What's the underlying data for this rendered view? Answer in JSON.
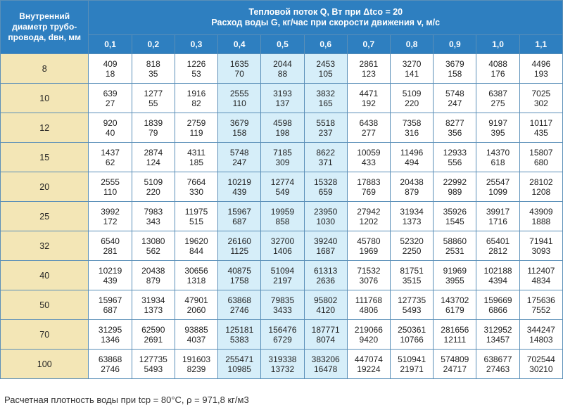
{
  "header": {
    "corner_text": "Внутренний диаметр трубо-провода, dвн, мм",
    "title_line1": "Тепловой поток Q, Вт при Δtco = 20",
    "title_line2": "Расход воды G, кг/час при скорости движения v, м/с"
  },
  "velocities": [
    "0,1",
    "0,2",
    "0,3",
    "0,4",
    "0,5",
    "0,6",
    "0,7",
    "0,8",
    "0,9",
    "1,0",
    "1,1"
  ],
  "rows": [
    {
      "d": "8",
      "cells": [
        [
          "409",
          "18"
        ],
        [
          "818",
          "35"
        ],
        [
          "1226",
          "53"
        ],
        [
          "1635",
          "70"
        ],
        [
          "2044",
          "88"
        ],
        [
          "2453",
          "105"
        ],
        [
          "2861",
          "123"
        ],
        [
          "3270",
          "141"
        ],
        [
          "3679",
          "158"
        ],
        [
          "4088",
          "176"
        ],
        [
          "4496",
          "193"
        ]
      ]
    },
    {
      "d": "10",
      "cells": [
        [
          "639",
          "27"
        ],
        [
          "1277",
          "55"
        ],
        [
          "1916",
          "82"
        ],
        [
          "2555",
          "110"
        ],
        [
          "3193",
          "137"
        ],
        [
          "3832",
          "165"
        ],
        [
          "4471",
          "192"
        ],
        [
          "5109",
          "220"
        ],
        [
          "5748",
          "247"
        ],
        [
          "6387",
          "275"
        ],
        [
          "7025",
          "302"
        ]
      ]
    },
    {
      "d": "12",
      "cells": [
        [
          "920",
          "40"
        ],
        [
          "1839",
          "79"
        ],
        [
          "2759",
          "119"
        ],
        [
          "3679",
          "158"
        ],
        [
          "4598",
          "198"
        ],
        [
          "5518",
          "237"
        ],
        [
          "6438",
          "277"
        ],
        [
          "7358",
          "316"
        ],
        [
          "8277",
          "356"
        ],
        [
          "9197",
          "395"
        ],
        [
          "10117",
          "435"
        ]
      ]
    },
    {
      "d": "15",
      "cells": [
        [
          "1437",
          "62"
        ],
        [
          "2874",
          "124"
        ],
        [
          "4311",
          "185"
        ],
        [
          "5748",
          "247"
        ],
        [
          "7185",
          "309"
        ],
        [
          "8622",
          "371"
        ],
        [
          "10059",
          "433"
        ],
        [
          "11496",
          "494"
        ],
        [
          "12933",
          "556"
        ],
        [
          "14370",
          "618"
        ],
        [
          "15807",
          "680"
        ]
      ]
    },
    {
      "d": "20",
      "cells": [
        [
          "2555",
          "110"
        ],
        [
          "5109",
          "220"
        ],
        [
          "7664",
          "330"
        ],
        [
          "10219",
          "439"
        ],
        [
          "12774",
          "549"
        ],
        [
          "15328",
          "659"
        ],
        [
          "17883",
          "769"
        ],
        [
          "20438",
          "879"
        ],
        [
          "22992",
          "989"
        ],
        [
          "25547",
          "1099"
        ],
        [
          "28102",
          "1208"
        ]
      ]
    },
    {
      "d": "25",
      "cells": [
        [
          "3992",
          "172"
        ],
        [
          "7983",
          "343"
        ],
        [
          "11975",
          "515"
        ],
        [
          "15967",
          "687"
        ],
        [
          "19959",
          "858"
        ],
        [
          "23950",
          "1030"
        ],
        [
          "27942",
          "1202"
        ],
        [
          "31934",
          "1373"
        ],
        [
          "35926",
          "1545"
        ],
        [
          "39917",
          "1716"
        ],
        [
          "43909",
          "1888"
        ]
      ]
    },
    {
      "d": "32",
      "cells": [
        [
          "6540",
          "281"
        ],
        [
          "13080",
          "562"
        ],
        [
          "19620",
          "844"
        ],
        [
          "26160",
          "1125"
        ],
        [
          "32700",
          "1406"
        ],
        [
          "39240",
          "1687"
        ],
        [
          "45780",
          "1969"
        ],
        [
          "52320",
          "2250"
        ],
        [
          "58860",
          "2531"
        ],
        [
          "65401",
          "2812"
        ],
        [
          "71941",
          "3093"
        ]
      ]
    },
    {
      "d": "40",
      "cells": [
        [
          "10219",
          "439"
        ],
        [
          "20438",
          "879"
        ],
        [
          "30656",
          "1318"
        ],
        [
          "40875",
          "1758"
        ],
        [
          "51094",
          "2197"
        ],
        [
          "61313",
          "2636"
        ],
        [
          "71532",
          "3076"
        ],
        [
          "81751",
          "3515"
        ],
        [
          "91969",
          "3955"
        ],
        [
          "102188",
          "4394"
        ],
        [
          "112407",
          "4834"
        ]
      ]
    },
    {
      "d": "50",
      "cells": [
        [
          "15967",
          "687"
        ],
        [
          "31934",
          "1373"
        ],
        [
          "47901",
          "2060"
        ],
        [
          "63868",
          "2746"
        ],
        [
          "79835",
          "3433"
        ],
        [
          "95802",
          "4120"
        ],
        [
          "111768",
          "4806"
        ],
        [
          "127735",
          "5493"
        ],
        [
          "143702",
          "6179"
        ],
        [
          "159669",
          "6866"
        ],
        [
          "175636",
          "7552"
        ]
      ]
    },
    {
      "d": "70",
      "cells": [
        [
          "31295",
          "1346"
        ],
        [
          "62590",
          "2691"
        ],
        [
          "93885",
          "4037"
        ],
        [
          "125181",
          "5383"
        ],
        [
          "156476",
          "6729"
        ],
        [
          "187771",
          "8074"
        ],
        [
          "219066",
          "9420"
        ],
        [
          "250361",
          "10766"
        ],
        [
          "281656",
          "12111"
        ],
        [
          "312952",
          "13457"
        ],
        [
          "344247",
          "14803"
        ]
      ]
    },
    {
      "d": "100",
      "cells": [
        [
          "63868",
          "2746"
        ],
        [
          "127735",
          "5493"
        ],
        [
          "191603",
          "8239"
        ],
        [
          "255471",
          "10985"
        ],
        [
          "319338",
          "13732"
        ],
        [
          "383206",
          "16478"
        ],
        [
          "447074",
          "19224"
        ],
        [
          "510941",
          "21971"
        ],
        [
          "574809",
          "24717"
        ],
        [
          "638677",
          "27463"
        ],
        [
          "702544",
          "30210"
        ]
      ]
    }
  ],
  "note": "Расчетная плотность воды при tср = 80°C, ρ = 971,8 кг/м3",
  "colors": {
    "header": "#2e7fc0",
    "diameter_col": "#f3e6b6",
    "highlight": "#d6eef9",
    "grid": "#5a8fb8"
  }
}
